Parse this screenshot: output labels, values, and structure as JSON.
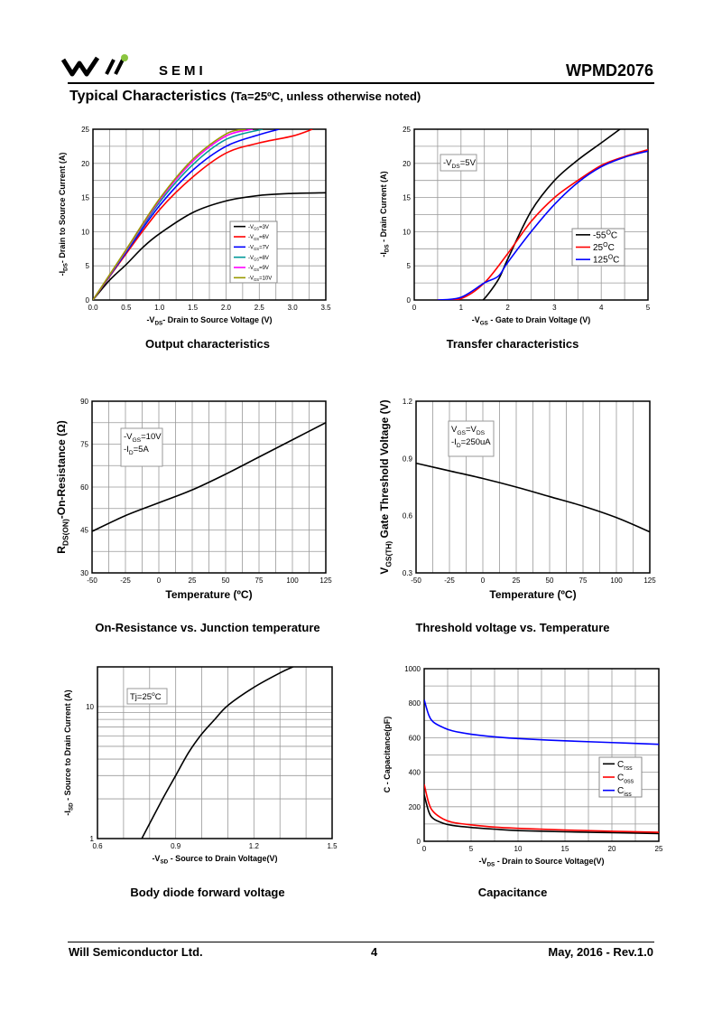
{
  "header": {
    "logo_text": "Will SEMI",
    "brand": "SEMI",
    "part_number": "WPMD2076"
  },
  "title": {
    "main": "Typical Characteristics",
    "condition": "(Ta=25ºC, unless otherwise noted)"
  },
  "captions": [
    "Output characteristics",
    "Transfer characteristics",
    "On-Resistance vs. Junction temperature",
    "Threshold voltage vs. Temperature",
    "Body diode forward voltage",
    "Capacitance"
  ],
  "footer": {
    "company": "Will Semiconductor Ltd.",
    "page": "4",
    "date_rev": "May, 2016 - Rev.1.0"
  },
  "chart_data": [
    {
      "type": "line",
      "xlim": [
        0,
        3.5
      ],
      "ylim": [
        0,
        25
      ],
      "xticks": [
        "0.0",
        "0.5",
        "1.0",
        "1.5",
        "2.0",
        "2.5",
        "3.0",
        "3.5"
      ],
      "yticks": [
        "0",
        "5",
        "10",
        "15",
        "20",
        "25"
      ],
      "grid": true,
      "xlabel": [
        {
          "t": "-V"
        },
        {
          "t": "DS",
          "sub": true
        },
        {
          "t": "- Drain to Source Voltage (V)"
        }
      ],
      "ylabel": [
        {
          "t": "-I"
        },
        {
          "t": "DS",
          "sub": true
        },
        {
          "t": "- Drain to Source Current (A)"
        }
      ],
      "legend_position": "center-right",
      "series": [
        {
          "name": [
            {
              "t": "-V"
            },
            {
              "t": "GS",
              "sub": true
            },
            {
              "t": "=3V"
            }
          ],
          "color": "#000000",
          "x": [
            0,
            0.25,
            0.5,
            0.75,
            1.0,
            1.5,
            2.0,
            2.5,
            3.0,
            3.5
          ],
          "y": [
            0,
            2.9,
            5.2,
            7.7,
            9.7,
            12.8,
            14.5,
            15.3,
            15.6,
            15.7
          ]
        },
        {
          "name": [
            {
              "t": "-V"
            },
            {
              "t": "GS",
              "sub": true
            },
            {
              "t": "=6V"
            }
          ],
          "color": "#ff0000",
          "x": [
            0,
            0.5,
            1.0,
            1.5,
            2.0,
            2.5,
            3.0,
            3.3
          ],
          "y": [
            0,
            6.8,
            13.2,
            18,
            21.5,
            23,
            24,
            25
          ]
        },
        {
          "name": [
            {
              "t": "-V"
            },
            {
              "t": "GS",
              "sub": true
            },
            {
              "t": "=7V"
            }
          ],
          "color": "#0000ff",
          "x": [
            0,
            0.5,
            1.0,
            1.5,
            2.0,
            2.5,
            2.8
          ],
          "y": [
            0,
            7,
            13.8,
            19,
            22.5,
            24.2,
            25
          ]
        },
        {
          "name": [
            {
              "t": "-V"
            },
            {
              "t": "GS",
              "sub": true
            },
            {
              "t": "=8V"
            }
          ],
          "color": "#009999",
          "x": [
            0,
            0.5,
            1.0,
            1.5,
            2.0,
            2.55
          ],
          "y": [
            0,
            7.2,
            14.3,
            19.8,
            23.5,
            25
          ]
        },
        {
          "name": [
            {
              "t": "-V"
            },
            {
              "t": "GS",
              "sub": true
            },
            {
              "t": "=9V"
            }
          ],
          "color": "#ff00ff",
          "x": [
            0,
            0.5,
            1.0,
            1.5,
            2.0,
            2.4
          ],
          "y": [
            0,
            7.3,
            14.6,
            20.3,
            24,
            25
          ]
        },
        {
          "name": [
            {
              "t": "-V"
            },
            {
              "t": "GS",
              "sub": true
            },
            {
              "t": "=10V"
            }
          ],
          "color": "#999900",
          "x": [
            0,
            0.5,
            1.0,
            1.5,
            2.0,
            2.3
          ],
          "y": [
            0,
            7.4,
            14.8,
            20.6,
            24.3,
            25
          ]
        }
      ]
    },
    {
      "type": "line",
      "xlim": [
        0,
        5
      ],
      "ylim": [
        0,
        25
      ],
      "xticks": [
        "0",
        "1",
        "2",
        "3",
        "4",
        "5"
      ],
      "yticks": [
        "0",
        "5",
        "10",
        "15",
        "20",
        "25"
      ],
      "grid": true,
      "xlabel": [
        {
          "t": "-V"
        },
        {
          "t": "GS",
          "sub": true
        },
        {
          "t": " - Gate to Drain Voltage (V)"
        }
      ],
      "ylabel": [
        {
          "t": "-I"
        },
        {
          "t": "DS",
          "sub": true
        },
        {
          "t": " - Drain Current (A)"
        }
      ],
      "annotation": [
        [
          {
            "t": "-V"
          },
          {
            "t": "DS",
            "sub": true
          },
          {
            "t": "=5V"
          }
        ]
      ],
      "legend_position": "center-right",
      "series": [
        {
          "name": [
            {
              "t": "-55"
            },
            {
              "t": "O",
              "sup": true
            },
            {
              "t": "C"
            }
          ],
          "color": "#000000",
          "x": [
            1.4,
            1.5,
            1.8,
            2.0,
            2.5,
            3.0,
            3.5,
            4.0,
            4.4
          ],
          "y": [
            0,
            0.2,
            3,
            6,
            13,
            17.5,
            20.5,
            23,
            25
          ]
        },
        {
          "name": [
            {
              "t": "25"
            },
            {
              "t": "O",
              "sup": true
            },
            {
              "t": "C"
            }
          ],
          "color": "#ff0000",
          "x": [
            0.5,
            1,
            1.5,
            2,
            2.5,
            3,
            3.5,
            4,
            4.5,
            5
          ],
          "y": [
            0,
            0.2,
            2.5,
            6.8,
            11.5,
            15,
            17.5,
            19.7,
            21,
            22
          ]
        },
        {
          "name": [
            {
              "t": "125"
            },
            {
              "t": "O",
              "sup": true
            },
            {
              "t": "C"
            }
          ],
          "color": "#0000ff",
          "x": [
            0.5,
            1,
            1.5,
            1.8,
            2,
            2.5,
            3,
            3.5,
            4,
            4.5,
            5
          ],
          "y": [
            0,
            0.4,
            2.5,
            3.5,
            5.5,
            10,
            14,
            17.2,
            19.5,
            20.9,
            21.8
          ]
        }
      ]
    },
    {
      "type": "line",
      "xlim": [
        -50,
        125
      ],
      "ylim": [
        30,
        90
      ],
      "xticks": [
        "-50",
        "-25",
        "0",
        "25",
        "50",
        "75",
        "100",
        "125"
      ],
      "yticks": [
        "30",
        "45",
        "60",
        "75",
        "90"
      ],
      "grid": true,
      "xlabel": [
        {
          "t": "Temperature (ºC)"
        }
      ],
      "ylabel": [
        {
          "t": "R"
        },
        {
          "t": "DS(ON)",
          "sub": true
        },
        {
          "t": "-On-Resistance (Ω)"
        }
      ],
      "annotation": [
        [
          {
            "t": "-V"
          },
          {
            "t": "GS",
            "sub": true
          },
          {
            "t": "=10V"
          }
        ],
        [
          {
            "t": "-I"
          },
          {
            "t": "D",
            "sub": true
          },
          {
            "t": "=5A"
          }
        ]
      ],
      "series": [
        {
          "color": "#000000",
          "x": [
            -50,
            -25,
            0,
            25,
            50,
            75,
            100,
            125
          ],
          "y": [
            44.5,
            50,
            54.5,
            59,
            64.5,
            70.5,
            76.5,
            82.5
          ]
        }
      ]
    },
    {
      "type": "line",
      "xlim": [
        -50,
        125
      ],
      "ylim": [
        0.3,
        1.2
      ],
      "xticks": [
        "-50",
        "-25",
        "0",
        "25",
        "50",
        "75",
        "100",
        "125"
      ],
      "yticks": [
        "0.3",
        "0.6",
        "0.9",
        "1.2"
      ],
      "grid": true,
      "xlabel": [
        {
          "t": "Temperature (ºC)"
        }
      ],
      "ylabel": [
        {
          "t": "V"
        },
        {
          "t": "GS(TH)",
          "sub": true
        },
        {
          "t": " Gate Threshold Voltage (V)"
        }
      ],
      "annotation": [
        [
          {
            "t": "V"
          },
          {
            "t": "GS",
            "sub": true
          },
          {
            "t": "=V"
          },
          {
            "t": "DS",
            "sub": true
          }
        ],
        [
          {
            "t": "-I"
          },
          {
            "t": "D",
            "sub": true
          },
          {
            "t": "=250uA"
          }
        ]
      ],
      "series": [
        {
          "color": "#000000",
          "x": [
            -50,
            -25,
            0,
            25,
            50,
            75,
            100,
            125
          ],
          "y": [
            0.875,
            0.835,
            0.795,
            0.75,
            0.7,
            0.65,
            0.59,
            0.515
          ]
        }
      ]
    },
    {
      "type": "line",
      "xlim": [
        0.6,
        1.5
      ],
      "ylim": [
        1,
        20
      ],
      "yscale": "log",
      "xticks": [
        "0.6",
        "0.9",
        "1.2",
        "1.5"
      ],
      "yticks": [
        "1",
        "10"
      ],
      "grid": true,
      "xlabel": [
        {
          "t": "-V"
        },
        {
          "t": "SD",
          "sub": true
        },
        {
          "t": " - Source to Drain Voltage(V)"
        }
      ],
      "ylabel": [
        {
          "t": "-I"
        },
        {
          "t": "SD",
          "sub": true
        },
        {
          "t": " - Source to Drain Current (A)"
        }
      ],
      "annotation": [
        [
          {
            "t": "Tj=25"
          },
          {
            "t": "o",
            "sup": true
          },
          {
            "t": "C"
          }
        ]
      ],
      "series": [
        {
          "color": "#000000",
          "x": [
            0.77,
            0.85,
            0.9,
            0.95,
            1.0,
            1.05,
            1.1,
            1.2,
            1.3,
            1.35
          ],
          "y": [
            1,
            2,
            3,
            4.5,
            6.2,
            8,
            10.2,
            14,
            18,
            20
          ]
        }
      ]
    },
    {
      "type": "line",
      "xlim": [
        0,
        25
      ],
      "ylim": [
        0,
        1000
      ],
      "xticks": [
        "0",
        "5",
        "10",
        "15",
        "20",
        "25"
      ],
      "yticks": [
        "0",
        "200",
        "400",
        "600",
        "800",
        "1000"
      ],
      "grid": true,
      "xlabel": [
        {
          "t": "-V"
        },
        {
          "t": "DS",
          "sub": true
        },
        {
          "t": " - Drain to Source Voltage(V)"
        }
      ],
      "ylabel": [
        {
          "t": "C - Capacitance(pF)"
        }
      ],
      "legend_position": "center-right",
      "series": [
        {
          "name": [
            {
              "t": "C"
            },
            {
              "t": "rss",
              "sub": true
            }
          ],
          "color": "#000000",
          "x": [
            0,
            0.5,
            1,
            2,
            3,
            5,
            7.5,
            10,
            15,
            20,
            25
          ],
          "y": [
            270,
            170,
            130,
            105,
            92,
            80,
            70,
            62,
            55,
            50,
            45
          ]
        },
        {
          "name": [
            {
              "t": "C"
            },
            {
              "t": "oss",
              "sub": true
            }
          ],
          "color": "#ff0000",
          "x": [
            0,
            0.5,
            1,
            2,
            3,
            5,
            7.5,
            10,
            15,
            20,
            25
          ],
          "y": [
            330,
            220,
            170,
            130,
            110,
            95,
            82,
            75,
            65,
            58,
            52
          ]
        },
        {
          "name": [
            {
              "t": "C"
            },
            {
              "t": "iss",
              "sub": true
            }
          ],
          "color": "#0000ff",
          "x": [
            0,
            0.5,
            1,
            2,
            3,
            5,
            7.5,
            10,
            15,
            20,
            25
          ],
          "y": [
            820,
            730,
            690,
            660,
            640,
            620,
            605,
            595,
            582,
            572,
            562
          ]
        }
      ]
    }
  ]
}
